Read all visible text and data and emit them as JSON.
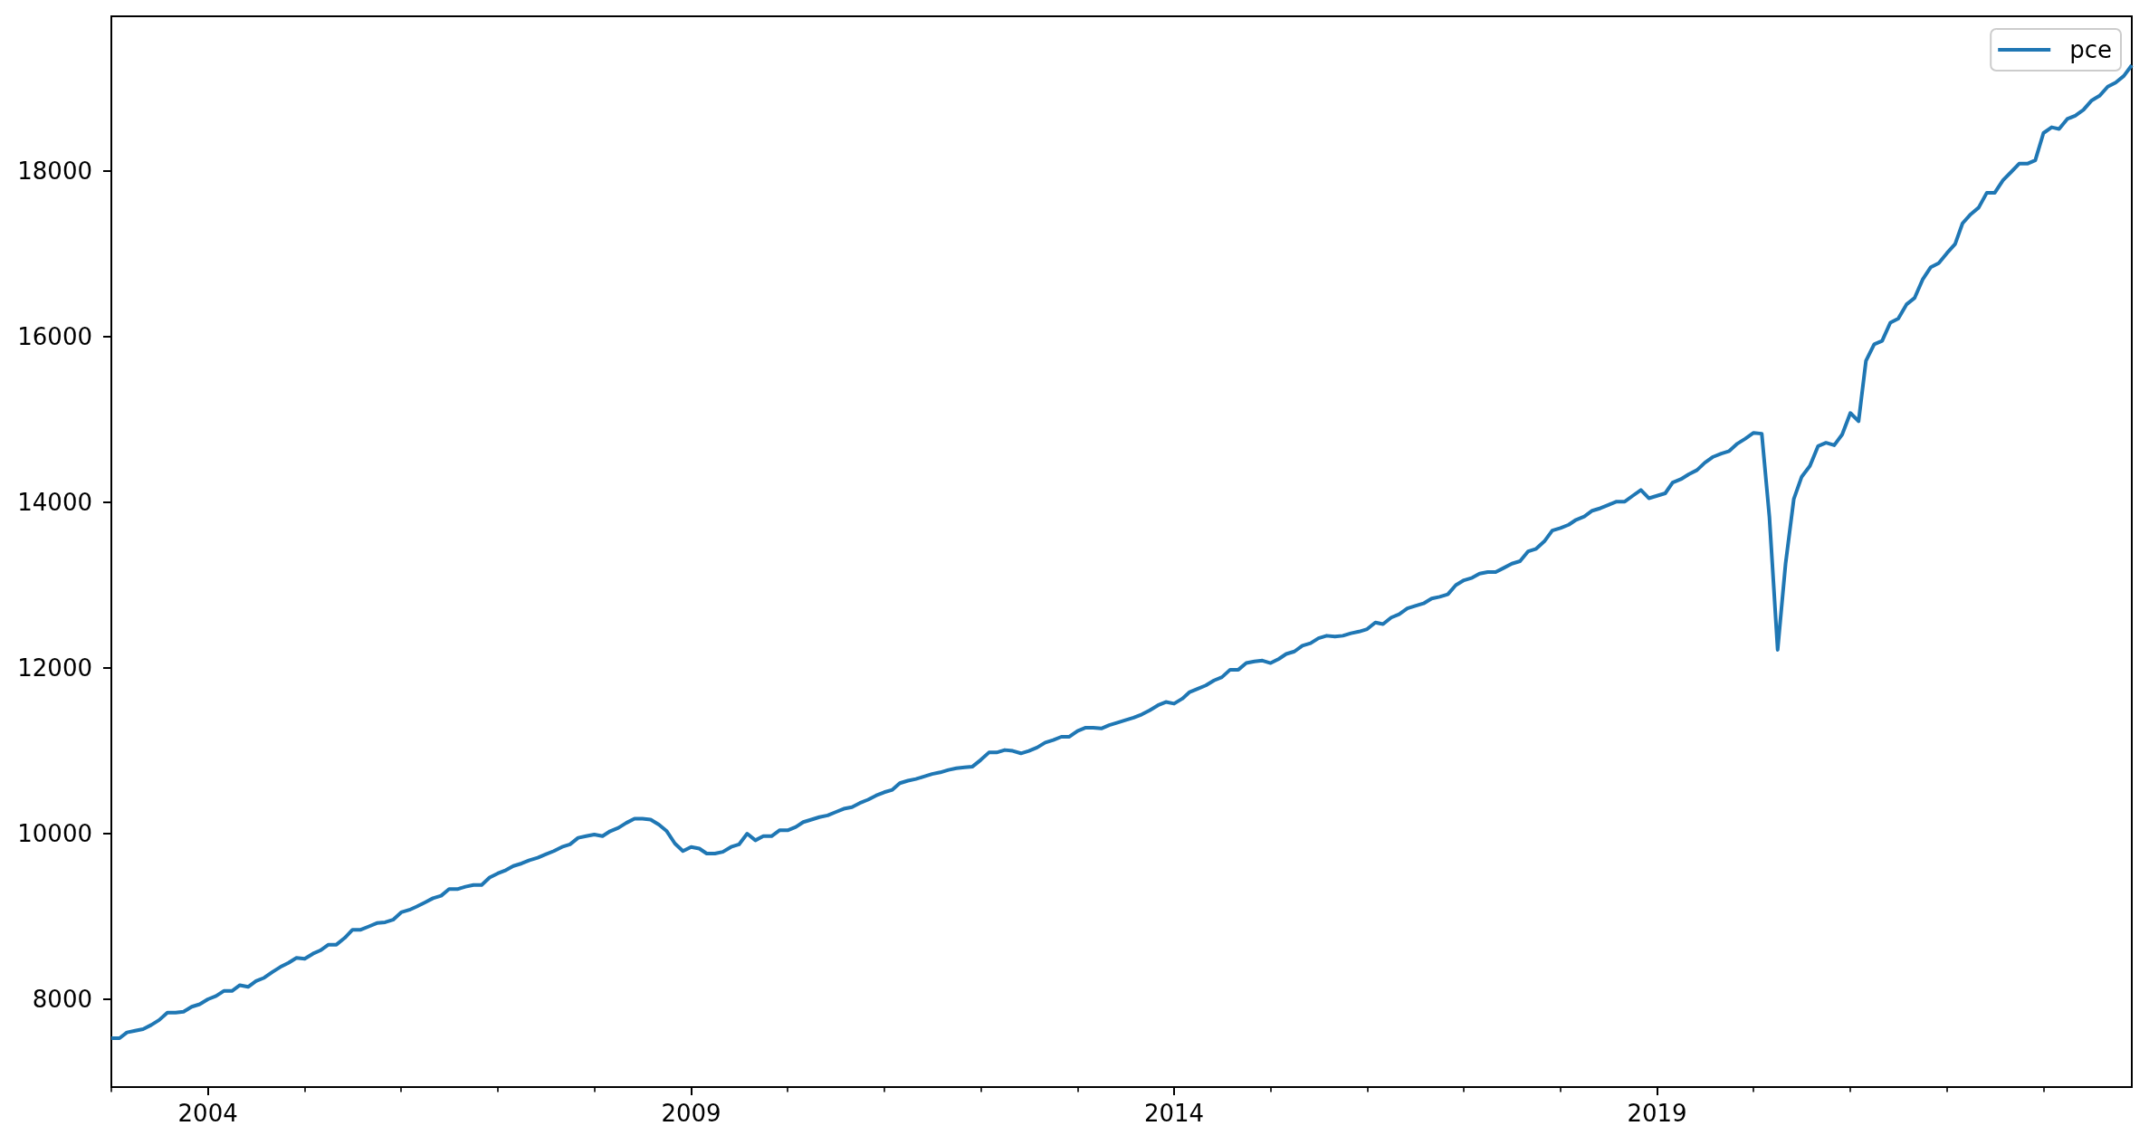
{
  "chart_data": {
    "type": "line",
    "x": [
      "2003-01",
      "2003-02",
      "2003-03",
      "2003-04",
      "2003-05",
      "2003-06",
      "2003-07",
      "2003-08",
      "2003-09",
      "2003-10",
      "2003-11",
      "2003-12",
      "2004-01",
      "2004-02",
      "2004-03",
      "2004-04",
      "2004-05",
      "2004-06",
      "2004-07",
      "2004-08",
      "2004-09",
      "2004-10",
      "2004-11",
      "2004-12",
      "2005-01",
      "2005-02",
      "2005-03",
      "2005-04",
      "2005-05",
      "2005-06",
      "2005-07",
      "2005-08",
      "2005-09",
      "2005-10",
      "2005-11",
      "2005-12",
      "2006-01",
      "2006-02",
      "2006-03",
      "2006-04",
      "2006-05",
      "2006-06",
      "2006-07",
      "2006-08",
      "2006-09",
      "2006-10",
      "2006-11",
      "2006-12",
      "2007-01",
      "2007-02",
      "2007-03",
      "2007-04",
      "2007-05",
      "2007-06",
      "2007-07",
      "2007-08",
      "2007-09",
      "2007-10",
      "2007-11",
      "2007-12",
      "2008-01",
      "2008-02",
      "2008-03",
      "2008-04",
      "2008-05",
      "2008-06",
      "2008-07",
      "2008-08",
      "2008-09",
      "2008-10",
      "2008-11",
      "2008-12",
      "2009-01",
      "2009-02",
      "2009-03",
      "2009-04",
      "2009-05",
      "2009-06",
      "2009-07",
      "2009-08",
      "2009-09",
      "2009-10",
      "2009-11",
      "2009-12",
      "2010-01",
      "2010-02",
      "2010-03",
      "2010-04",
      "2010-05",
      "2010-06",
      "2010-07",
      "2010-08",
      "2010-09",
      "2010-10",
      "2010-11",
      "2010-12",
      "2011-01",
      "2011-02",
      "2011-03",
      "2011-04",
      "2011-05",
      "2011-06",
      "2011-07",
      "2011-08",
      "2011-09",
      "2011-10",
      "2011-11",
      "2011-12",
      "2012-01",
      "2012-02",
      "2012-03",
      "2012-04",
      "2012-05",
      "2012-06",
      "2012-07",
      "2012-08",
      "2012-09",
      "2012-10",
      "2012-11",
      "2012-12",
      "2013-01",
      "2013-02",
      "2013-03",
      "2013-04",
      "2013-05",
      "2013-06",
      "2013-07",
      "2013-08",
      "2013-09",
      "2013-10",
      "2013-11",
      "2013-12",
      "2014-01",
      "2014-02",
      "2014-03",
      "2014-04",
      "2014-05",
      "2014-06",
      "2014-07",
      "2014-08",
      "2014-09",
      "2014-10",
      "2014-11",
      "2014-12",
      "2015-01",
      "2015-02",
      "2015-03",
      "2015-04",
      "2015-05",
      "2015-06",
      "2015-07",
      "2015-08",
      "2015-09",
      "2015-10",
      "2015-11",
      "2015-12",
      "2016-01",
      "2016-02",
      "2016-03",
      "2016-04",
      "2016-05",
      "2016-06",
      "2016-07",
      "2016-08",
      "2016-09",
      "2016-10",
      "2016-11",
      "2016-12",
      "2017-01",
      "2017-02",
      "2017-03",
      "2017-04",
      "2017-05",
      "2017-06",
      "2017-07",
      "2017-08",
      "2017-09",
      "2017-10",
      "2017-11",
      "2017-12",
      "2018-01",
      "2018-02",
      "2018-03",
      "2018-04",
      "2018-05",
      "2018-06",
      "2018-07",
      "2018-08",
      "2018-09",
      "2018-10",
      "2018-11",
      "2018-12",
      "2019-01",
      "2019-02",
      "2019-03",
      "2019-04",
      "2019-05",
      "2019-06",
      "2019-07",
      "2019-08",
      "2019-09",
      "2019-10",
      "2019-11",
      "2019-12",
      "2020-01",
      "2020-02",
      "2020-03",
      "2020-04",
      "2020-05",
      "2020-06",
      "2020-07",
      "2020-08",
      "2020-09",
      "2020-10",
      "2020-11",
      "2020-12",
      "2021-01",
      "2021-02",
      "2021-03",
      "2021-04",
      "2021-05",
      "2021-06",
      "2021-07",
      "2021-08",
      "2021-09",
      "2021-10",
      "2021-11",
      "2021-12",
      "2022-01",
      "2022-02",
      "2022-03",
      "2022-04",
      "2022-05",
      "2022-06",
      "2022-07",
      "2022-08",
      "2022-09",
      "2022-10",
      "2022-11",
      "2022-12",
      "2023-01",
      "2023-02",
      "2023-03",
      "2023-04",
      "2023-05",
      "2023-06",
      "2023-07",
      "2023-08",
      "2023-09",
      "2023-10",
      "2023-11",
      "2023-12"
    ],
    "series": [
      {
        "name": "pce",
        "color": "#1f77b4",
        "values": [
          7530,
          7530,
          7600,
          7620,
          7640,
          7690,
          7750,
          7840,
          7840,
          7850,
          7910,
          7940,
          8000,
          8040,
          8100,
          8100,
          8170,
          8150,
          8220,
          8260,
          8330,
          8390,
          8440,
          8500,
          8490,
          8550,
          8590,
          8660,
          8660,
          8740,
          8840,
          8840,
          8880,
          8920,
          8930,
          8960,
          9050,
          9080,
          9120,
          9170,
          9220,
          9250,
          9330,
          9330,
          9360,
          9380,
          9380,
          9470,
          9520,
          9560,
          9610,
          9640,
          9680,
          9710,
          9750,
          9790,
          9840,
          9870,
          9950,
          9970,
          9990,
          9970,
          10030,
          10070,
          10130,
          10180,
          10180,
          10170,
          10110,
          10030,
          9880,
          9790,
          9840,
          9820,
          9760,
          9760,
          9780,
          9840,
          9870,
          10000,
          9920,
          9970,
          9970,
          10040,
          10040,
          10080,
          10140,
          10170,
          10200,
          10220,
          10260,
          10300,
          10320,
          10370,
          10410,
          10460,
          10500,
          10530,
          10610,
          10640,
          10660,
          10690,
          10720,
          10740,
          10770,
          10790,
          10800,
          10810,
          10890,
          10980,
          10980,
          11010,
          11000,
          10970,
          11000,
          11040,
          11100,
          11130,
          11170,
          11170,
          11240,
          11280,
          11280,
          11270,
          11310,
          11340,
          11370,
          11400,
          11440,
          11490,
          11550,
          11590,
          11570,
          11630,
          11710,
          11750,
          11790,
          11850,
          11890,
          11980,
          11980,
          12060,
          12080,
          12090,
          12060,
          12110,
          12170,
          12200,
          12270,
          12300,
          12360,
          12390,
          12380,
          12390,
          12420,
          12440,
          12470,
          12550,
          12530,
          12610,
          12650,
          12720,
          12750,
          12780,
          12840,
          12860,
          12890,
          13000,
          13060,
          13090,
          13140,
          13160,
          13160,
          13210,
          13260,
          13290,
          13410,
          13440,
          13530,
          13660,
          13690,
          13730,
          13790,
          13830,
          13900,
          13930,
          13970,
          14010,
          14010,
          14080,
          14150,
          14050,
          14080,
          14110,
          14240,
          14280,
          14340,
          14390,
          14480,
          14550,
          14590,
          14620,
          14710,
          14770,
          14840,
          14830,
          13820,
          12220,
          13260,
          14040,
          14310,
          14440,
          14680,
          14720,
          14690,
          14820,
          15080,
          14980,
          15710,
          15910,
          15950,
          16170,
          16220,
          16390,
          16470,
          16690,
          16840,
          16890,
          17010,
          17120,
          17370,
          17480,
          17560,
          17740,
          17740,
          17890,
          17990,
          18090,
          18090,
          18130,
          18460,
          18530,
          18510,
          18630,
          18670,
          18740,
          18850,
          18910,
          19020,
          19070,
          19150,
          19280
        ]
      }
    ],
    "xlim": [
      "2003-01",
      "2023-12"
    ],
    "xticks": [
      {
        "value": "2003-01",
        "label": null
      },
      {
        "value": "2004-01",
        "label": "2004"
      },
      {
        "value": "2005-01",
        "label": null
      },
      {
        "value": "2006-01",
        "label": null
      },
      {
        "value": "2007-01",
        "label": null
      },
      {
        "value": "2008-01",
        "label": null
      },
      {
        "value": "2009-01",
        "label": "2009"
      },
      {
        "value": "2010-01",
        "label": null
      },
      {
        "value": "2011-01",
        "label": null
      },
      {
        "value": "2012-01",
        "label": null
      },
      {
        "value": "2013-01",
        "label": null
      },
      {
        "value": "2014-01",
        "label": "2014"
      },
      {
        "value": "2015-01",
        "label": null
      },
      {
        "value": "2016-01",
        "label": null
      },
      {
        "value": "2017-01",
        "label": null
      },
      {
        "value": "2018-01",
        "label": null
      },
      {
        "value": "2019-01",
        "label": "2019"
      },
      {
        "value": "2020-01",
        "label": null
      },
      {
        "value": "2021-01",
        "label": null
      },
      {
        "value": "2022-01",
        "label": null
      },
      {
        "value": "2023-01",
        "label": null
      }
    ],
    "ylim": [
      6940,
      19870
    ],
    "yticks": [
      8000,
      10000,
      12000,
      14000,
      16000,
      18000
    ],
    "grid": false,
    "legend": "top right",
    "marker": "none",
    "line_style": "solid"
  }
}
